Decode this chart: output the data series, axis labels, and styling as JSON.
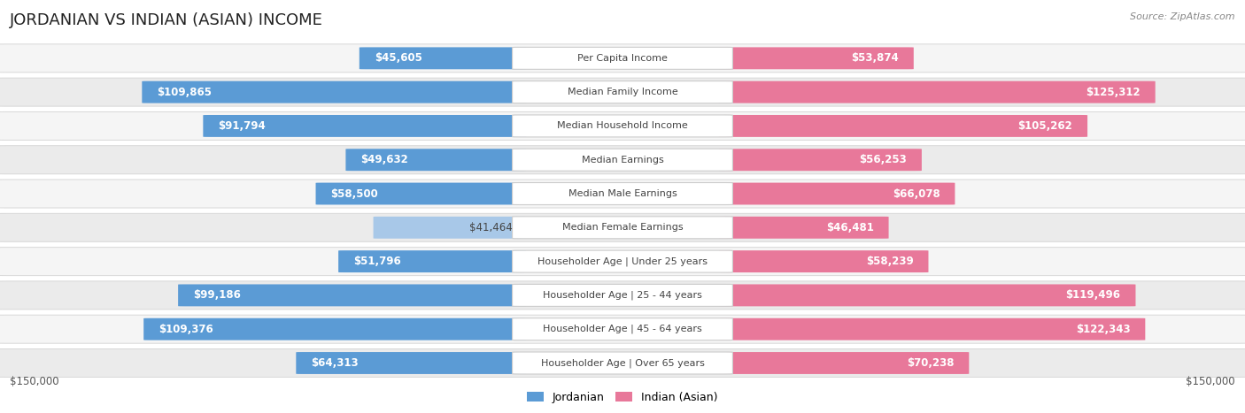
{
  "title": "JORDANIAN VS INDIAN (ASIAN) INCOME",
  "source": "Source: ZipAtlas.com",
  "categories": [
    "Per Capita Income",
    "Median Family Income",
    "Median Household Income",
    "Median Earnings",
    "Median Male Earnings",
    "Median Female Earnings",
    "Householder Age | Under 25 years",
    "Householder Age | 25 - 44 years",
    "Householder Age | 45 - 64 years",
    "Householder Age | Over 65 years"
  ],
  "jordanian_values": [
    45605,
    109865,
    91794,
    49632,
    58500,
    41464,
    51796,
    99186,
    109376,
    64313
  ],
  "indian_values": [
    53874,
    125312,
    105262,
    56253,
    66078,
    46481,
    58239,
    119496,
    122343,
    70238
  ],
  "jordanian_labels": [
    "$45,605",
    "$109,865",
    "$91,794",
    "$49,632",
    "$58,500",
    "$41,464",
    "$51,796",
    "$99,186",
    "$109,376",
    "$64,313"
  ],
  "indian_labels": [
    "$53,874",
    "$125,312",
    "$105,262",
    "$56,253",
    "$66,078",
    "$46,481",
    "$58,239",
    "$119,496",
    "$122,343",
    "$70,238"
  ],
  "jordanian_color_light": "#a8c8e8",
  "jordanian_color_dark": "#5b9bd5",
  "indian_color_light": "#f5b8cc",
  "indian_color_dark": "#e8789a",
  "max_value": 150000,
  "row_bg_light": "#f5f5f5",
  "row_bg_dark": "#ebebeb",
  "background_color": "#ffffff",
  "cat_label_fontsize": 8,
  "value_label_fontsize": 8.5,
  "title_fontsize": 13,
  "source_fontsize": 8,
  "axis_label_fontsize": 8.5,
  "legend_fontsize": 9,
  "inside_label_threshold": 0.28
}
